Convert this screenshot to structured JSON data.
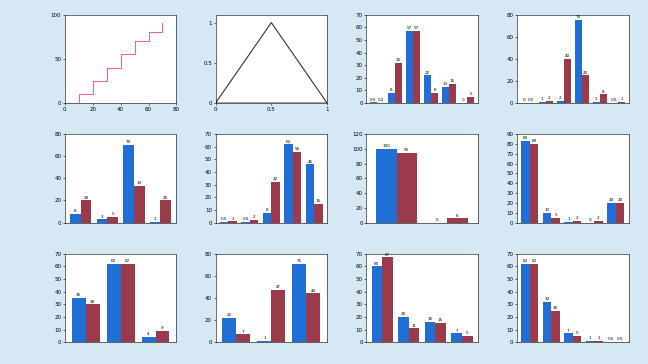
{
  "chart_data": [
    {
      "type": "line",
      "x": [
        0,
        10,
        20,
        30,
        40,
        50,
        60,
        70
      ],
      "line_style": "steps",
      "series": [
        {
          "color": "#e06aa8",
          "values": [
            0,
            10,
            25,
            40,
            55,
            70,
            80,
            90
          ]
        }
      ],
      "xlim": [
        0,
        80
      ],
      "xticks": [
        0,
        20,
        40,
        60,
        80
      ],
      "ylim": [
        0,
        100
      ],
      "yticks": [
        0,
        50,
        100
      ]
    },
    {
      "type": "line",
      "x": [
        0,
        0.5,
        1,
        0
      ],
      "line_style": "solid",
      "series": [
        {
          "color": "#333333",
          "values": [
            0,
            1,
            0,
            0
          ]
        }
      ],
      "xlim": [
        0,
        1
      ],
      "xticks": [
        0,
        0.5,
        1
      ],
      "ylim": [
        0,
        1.1
      ],
      "yticks": [
        0,
        0.5,
        1
      ]
    },
    {
      "type": "bar",
      "categories": [
        null,
        null,
        null,
        null,
        null,
        null
      ],
      "data_labels": true,
      "series": [
        {
          "color": "#1f6fd6",
          "values": [
            0.5,
            8,
            57,
            22,
            13,
            0
          ]
        },
        {
          "color": "#9b3a4a",
          "values": [
            0.2,
            32,
            57,
            8,
            15,
            5
          ]
        }
      ],
      "ylim": [
        0,
        70
      ],
      "yticks": [
        0,
        10,
        20,
        30,
        40,
        50,
        60,
        70
      ]
    },
    {
      "type": "bar",
      "categories": [
        null,
        null,
        null,
        null,
        null,
        null
      ],
      "data_labels": true,
      "series": [
        {
          "color": "#1f6fd6",
          "values": [
            0,
            1,
            2,
            75,
            1,
            0.5
          ]
        },
        {
          "color": "#9b3a4a",
          "values": [
            0.5,
            2,
            40,
            25,
            8,
            1
          ]
        }
      ],
      "ylim": [
        0,
        80
      ],
      "yticks": [
        0,
        20,
        40,
        60,
        80
      ]
    },
    {
      "type": "bar",
      "categories": [
        null,
        null,
        null,
        null
      ],
      "data_labels": true,
      "series": [
        {
          "color": "#1f6fd6",
          "values": [
            8,
            3,
            70,
            1
          ]
        },
        {
          "color": "#9b3a4a",
          "values": [
            20,
            5,
            33,
            20
          ]
        }
      ],
      "ylim": [
        0,
        80
      ],
      "yticks": [
        0,
        20,
        40,
        60,
        80
      ]
    },
    {
      "type": "bar",
      "categories": [
        null,
        null,
        null,
        null,
        null
      ],
      "data_labels": true,
      "series": [
        {
          "color": "#1f6fd6",
          "values": [
            0.5,
            0.5,
            8,
            62,
            46
          ]
        },
        {
          "color": "#9b3a4a",
          "values": [
            1,
            2,
            32,
            56,
            15
          ]
        }
      ],
      "ylim": [
        0,
        70
      ],
      "yticks": [
        0,
        10,
        20,
        30,
        40,
        50,
        60,
        70
      ]
    },
    {
      "type": "bar",
      "categories": [
        null,
        null
      ],
      "data_labels": true,
      "series": [
        {
          "color": "#1f6fd6",
          "values": [
            100,
            0
          ]
        },
        {
          "color": "#9b3a4a",
          "values": [
            95,
            6
          ]
        }
      ],
      "ylim": [
        0,
        120
      ],
      "yticks": [
        0,
        20,
        40,
        60,
        80,
        100,
        120
      ]
    },
    {
      "type": "bar",
      "categories": [
        null,
        null,
        null,
        null,
        null
      ],
      "data_labels": true,
      "series": [
        {
          "color": "#1f6fd6",
          "values": [
            83,
            10,
            1,
            0,
            20
          ]
        },
        {
          "color": "#9b3a4a",
          "values": [
            80,
            5,
            2,
            2,
            20
          ]
        }
      ],
      "ylim": [
        0,
        90
      ],
      "yticks": [
        0,
        10,
        20,
        30,
        40,
        50,
        60,
        70,
        80,
        90
      ]
    },
    {
      "type": "bar",
      "categories": [
        null,
        null,
        null
      ],
      "data_labels": true,
      "series": [
        {
          "color": "#1f6fd6",
          "values": [
            35,
            62,
            4
          ]
        },
        {
          "color": "#9b3a4a",
          "values": [
            30,
            62,
            9
          ]
        }
      ],
      "ylim": [
        0,
        70
      ],
      "yticks": [
        0,
        10,
        20,
        30,
        40,
        50,
        60,
        70
      ]
    },
    {
      "type": "bar",
      "categories": [
        null,
        null,
        null
      ],
      "data_labels": true,
      "series": [
        {
          "color": "#1f6fd6",
          "values": [
            22,
            1,
            71
          ]
        },
        {
          "color": "#9b3a4a",
          "values": [
            7,
            47,
            44
          ]
        }
      ],
      "ylim": [
        0,
        80
      ],
      "yticks": [
        0,
        20,
        40,
        60,
        80
      ]
    },
    {
      "type": "bar",
      "categories": [
        null,
        null,
        null,
        null
      ],
      "data_labels": true,
      "series": [
        {
          "color": "#1f6fd6",
          "values": [
            60,
            20,
            16,
            7
          ]
        },
        {
          "color": "#9b3a4a",
          "values": [
            67,
            11,
            15,
            5
          ]
        }
      ],
      "ylim": [
        0,
        70
      ],
      "yticks": [
        0,
        10,
        20,
        30,
        40,
        50,
        60,
        70
      ]
    },
    {
      "type": "bar",
      "categories": [
        null,
        null,
        null,
        null,
        null
      ],
      "data_labels": true,
      "series": [
        {
          "color": "#1f6fd6",
          "values": [
            62,
            32,
            7,
            1,
            0.5
          ]
        },
        {
          "color": "#9b3a4a",
          "values": [
            62,
            25,
            5,
            1,
            0.5
          ]
        }
      ],
      "ylim": [
        0,
        70
      ],
      "yticks": [
        0,
        10,
        20,
        30,
        40,
        50,
        60,
        70
      ]
    }
  ]
}
